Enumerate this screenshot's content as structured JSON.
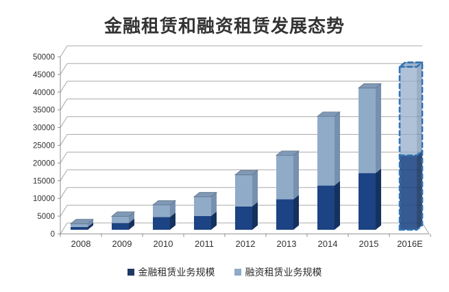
{
  "title": "金融租赁和融资租赁发展态势",
  "chart_data": {
    "type": "bar",
    "stacked": true,
    "pseudo_3d": true,
    "title": "金融租赁和融资租赁发展态势",
    "categories": [
      "2008",
      "2009",
      "2010",
      "2011",
      "2012",
      "2013",
      "2014",
      "2015",
      "2016E"
    ],
    "series": [
      {
        "name": "金融租赁业务规模",
        "color_front": "#1C4383",
        "color_side": "#15315E",
        "legend_color": "#1F3864",
        "values": [
          800,
          1900,
          3600,
          3900,
          6600,
          8600,
          12500,
          16000,
          21000
        ]
      },
      {
        "name": "融资租赁业务规模",
        "color_front": "#90ABC8",
        "color_side": "#7690AF",
        "color_top": "#8099B6",
        "legend_color": "#8FA9C8",
        "values": [
          900,
          1900,
          3400,
          5400,
          8900,
          12400,
          19500,
          24000,
          25000
        ]
      }
    ],
    "totals": [
      1700,
      3800,
      7000,
      9300,
      15500,
      21000,
      32000,
      40000,
      46000
    ],
    "ylim": [
      0,
      50000
    ],
    "ytick_step": 5000,
    "y_ticks": [
      "0",
      "5000",
      "10000",
      "15000",
      "20000",
      "25000",
      "30000",
      "35000",
      "40000",
      "45000",
      "50000"
    ],
    "grid": true,
    "legend_position": "bottom",
    "forecast_category": "2016E",
    "forecast_border_color": "#2E74B5",
    "colors": {
      "gridline": "#A8A8A8",
      "axis": "#8C8C8C",
      "tick_label": "#303030",
      "title": "#333333",
      "cap_edge": "#5F7488"
    }
  }
}
